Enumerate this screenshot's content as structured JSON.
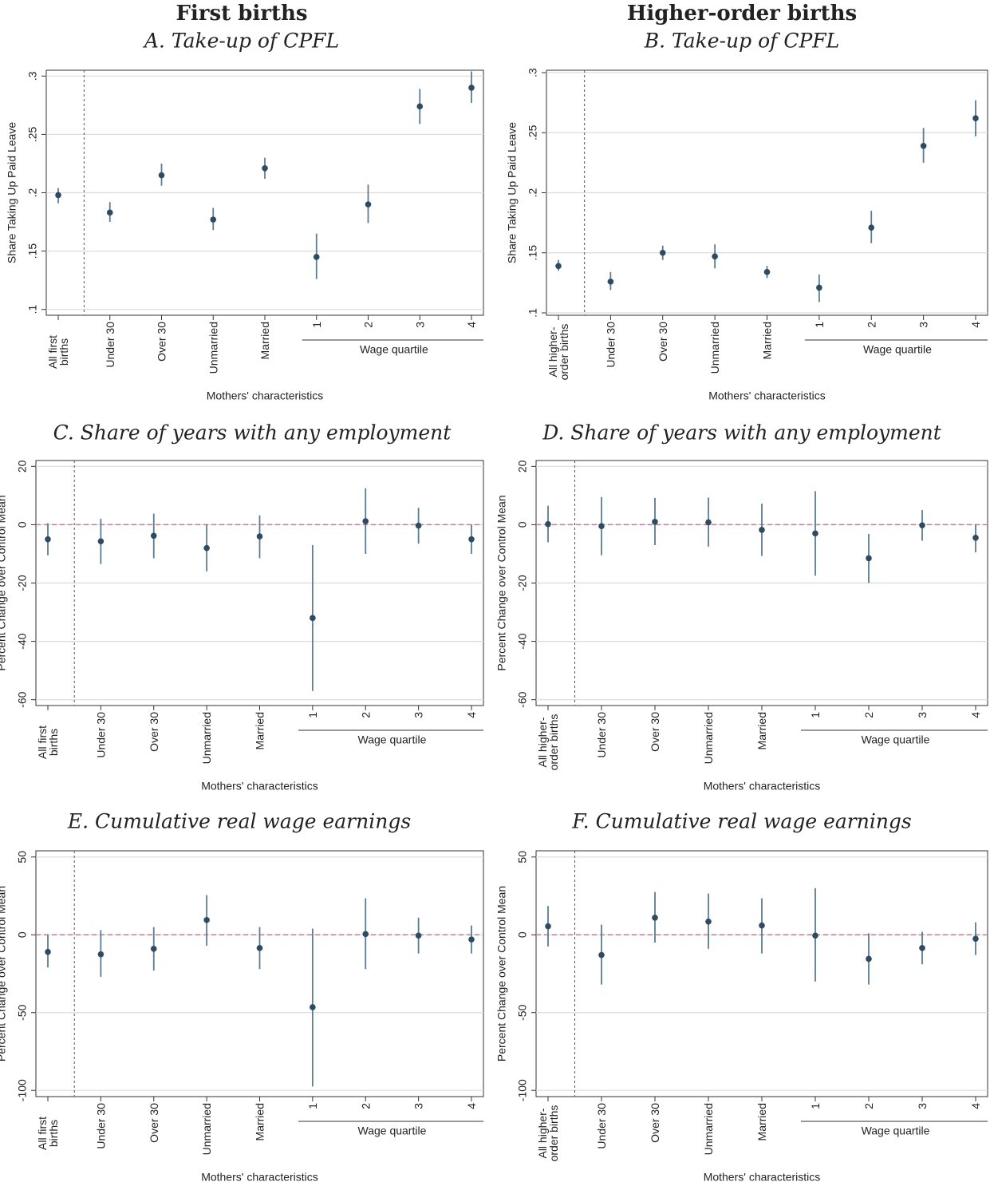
{
  "column_titles": [
    "First births",
    "Higher-order births"
  ],
  "chart_data": [
    {
      "type": "errorbar",
      "title": "A. Take-up of CPFL",
      "y_label": "Share Taking Up Paid Leave",
      "x_label": "Mothers' characteristics",
      "group_label": "Wage quartile",
      "categories": [
        "All first births",
        "Under 30",
        "Over 30",
        "Unmarried",
        "Married",
        "1",
        "2",
        "3",
        "4"
      ],
      "values": [
        0.198,
        0.183,
        0.215,
        0.177,
        0.221,
        0.145,
        0.19,
        0.274,
        0.29
      ],
      "ci_low": [
        0.191,
        0.175,
        0.206,
        0.168,
        0.212,
        0.126,
        0.174,
        0.259,
        0.277
      ],
      "ci_high": [
        0.204,
        0.192,
        0.225,
        0.187,
        0.23,
        0.165,
        0.207,
        0.289,
        0.304
      ],
      "ylim": [
        0.095,
        0.305
      ],
      "yticks": [
        {
          "value": 0.1,
          "label": ".1"
        },
        {
          "value": 0.15,
          "label": ".15"
        },
        {
          "value": 0.2,
          "label": ".2"
        },
        {
          "value": 0.25,
          "label": ".25"
        },
        {
          "value": 0.3,
          "label": ".3"
        }
      ],
      "grid": true,
      "color": "#2f4b63",
      "bar_color": "#5b7c92"
    },
    {
      "type": "errorbar",
      "title": "B. Take-up of CPFL",
      "y_label": "Share Taking Up Paid Leave",
      "x_label": "Mothers' characteristics",
      "group_label": "Wage quartile",
      "categories": [
        "All higher-order births",
        "Under 30",
        "Over 30",
        "Unmarried",
        "Married",
        "1",
        "2",
        "3",
        "4"
      ],
      "values": [
        0.139,
        0.126,
        0.15,
        0.147,
        0.134,
        0.121,
        0.171,
        0.239,
        0.262
      ],
      "ci_low": [
        0.135,
        0.119,
        0.144,
        0.137,
        0.129,
        0.109,
        0.158,
        0.225,
        0.247
      ],
      "ci_high": [
        0.144,
        0.134,
        0.156,
        0.157,
        0.139,
        0.132,
        0.185,
        0.254,
        0.277
      ],
      "ylim": [
        0.098,
        0.302
      ],
      "yticks": [
        {
          "value": 0.1,
          "label": ".1"
        },
        {
          "value": 0.15,
          "label": ".15"
        },
        {
          "value": 0.2,
          "label": ".2"
        },
        {
          "value": 0.25,
          "label": ".25"
        },
        {
          "value": 0.3,
          "label": ".3"
        }
      ],
      "grid": true,
      "color": "#2f4b63",
      "bar_color": "#5b7c92"
    },
    {
      "type": "errorbar",
      "title": "C. Share of years with any employment",
      "y_label": "Percent Change over Control Mean",
      "x_label": "Mothers' characteristics",
      "group_label": "Wage quartile",
      "categories": [
        "All first births",
        "Under 30",
        "Over 30",
        "Unmarried",
        "Married",
        "1",
        "2",
        "3",
        "4"
      ],
      "values": [
        -5,
        -5.7,
        -3.8,
        -8,
        -4,
        -32,
        1.2,
        -0.3,
        -5
      ],
      "ci_low": [
        -10.5,
        -13.5,
        -11.5,
        -16,
        -11.5,
        -57,
        -10,
        -6.5,
        -10
      ],
      "ci_high": [
        0.5,
        2,
        3.8,
        0,
        3.2,
        -7,
        12.5,
        5.8,
        0
      ],
      "ylim": [
        -62,
        22
      ],
      "yticks": [
        -60,
        -40,
        -20,
        0,
        20
      ],
      "ref_line": 0,
      "ref_color": "#d9738a",
      "grid": true,
      "color": "#2f4b63",
      "bar_color": "#5b7c92"
    },
    {
      "type": "errorbar",
      "title": "D. Share of years with any employment",
      "y_label": "Percent Change over Control Mean",
      "x_label": "Mothers' characteristics",
      "group_label": "Wage quartile",
      "categories": [
        "All higher-order births",
        "Under 30",
        "Over 30",
        "Unmarried",
        "Married",
        "1",
        "2",
        "3",
        "4"
      ],
      "values": [
        0.2,
        -0.5,
        1,
        0.8,
        -1.8,
        -3,
        -11.5,
        -0.2,
        -4.5
      ],
      "ci_low": [
        -6,
        -10.5,
        -7,
        -7.5,
        -10.7,
        -17.5,
        -20,
        -5.5,
        -9.5
      ],
      "ci_high": [
        6.5,
        9.5,
        9.2,
        9.3,
        7.2,
        11.5,
        -3.2,
        5,
        0
      ],
      "ylim": [
        -62,
        22
      ],
      "yticks": [
        -60,
        -40,
        -20,
        0,
        20
      ],
      "ref_line": 0,
      "ref_color": "#d9738a",
      "grid": true,
      "color": "#2f4b63",
      "bar_color": "#5b7c92"
    },
    {
      "type": "errorbar",
      "title": "E. Cumulative real wage earnings",
      "y_label": "Percent Change over Control Mean",
      "x_label": "Mothers' characteristics",
      "group_label": "Wage quartile",
      "categories": [
        "All first births",
        "Under 30",
        "Over 30",
        "Unmarried",
        "Married",
        "1",
        "2",
        "3",
        "4"
      ],
      "values": [
        -11,
        -12.5,
        -9,
        9.5,
        -8.5,
        -46.5,
        0.5,
        -0.5,
        -3
      ],
      "ci_low": [
        -21,
        -27,
        -23,
        -7,
        -22,
        -97.5,
        -22,
        -12,
        -12
      ],
      "ci_high": [
        0,
        3,
        5,
        25.5,
        5,
        4,
        23.5,
        11,
        6
      ],
      "ylim": [
        -104,
        54
      ],
      "yticks": [
        -100,
        -50,
        0,
        50
      ],
      "ref_line": 0,
      "ref_color": "#d9738a",
      "grid": true,
      "color": "#2f4b63",
      "bar_color": "#5b7c92"
    },
    {
      "type": "errorbar",
      "title": "F. Cumulative real wage earnings",
      "y_label": "Percent Change over Control Mean",
      "x_label": "Mothers' characteristics",
      "group_label": "Wage quartile",
      "categories": [
        "All higher-order births",
        "Under 30",
        "Over 30",
        "Unmarried",
        "Married",
        "1",
        "2",
        "3",
        "4"
      ],
      "values": [
        5.5,
        -13,
        11,
        8.5,
        6,
        -0.5,
        -15.5,
        -8.5,
        -2.5
      ],
      "ci_low": [
        -7.5,
        -32,
        -5,
        -9,
        -12,
        -30,
        -32,
        -19,
        -13
      ],
      "ci_high": [
        18.5,
        6.5,
        27.5,
        26.5,
        23.5,
        30,
        1,
        2,
        8
      ],
      "ylim": [
        -104,
        54
      ],
      "yticks": [
        -100,
        -50,
        0,
        50
      ],
      "ref_line": 0,
      "ref_color": "#d9738a",
      "grid": true,
      "color": "#2f4b63",
      "bar_color": "#5b7c92"
    }
  ]
}
